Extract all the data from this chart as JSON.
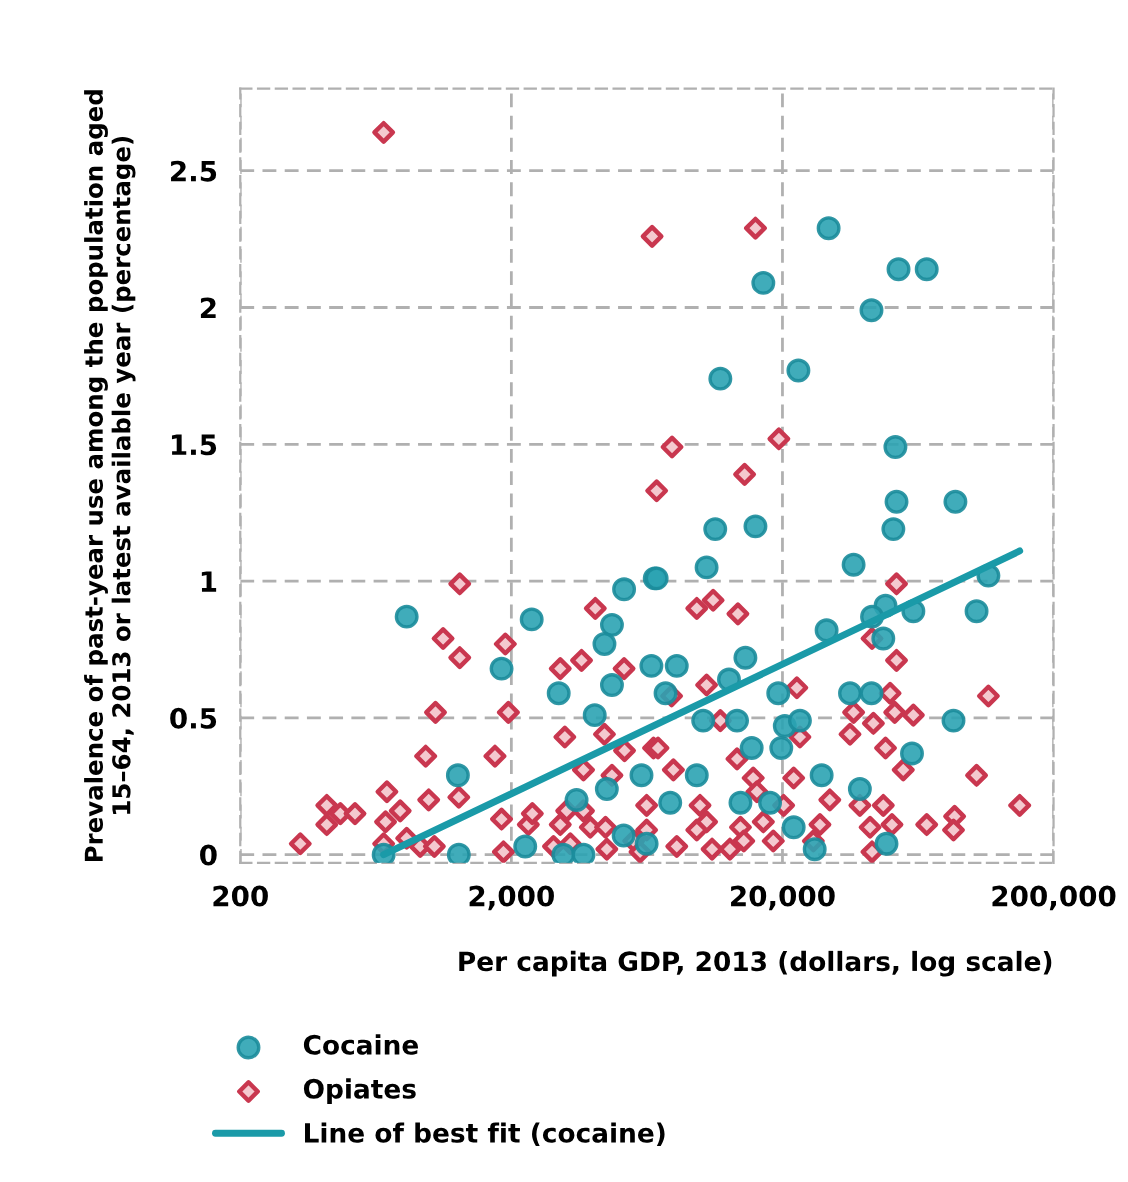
{
  "chart_data": {
    "type": "scatter",
    "xlabel": "Per capita GDP, 2013 (dollars, log scale)",
    "ylabel": "Prevalence of past-year use among the population aged\n15–64, 2013 or latest available year (percentage)",
    "log": "x",
    "xlim": [
      200,
      200000
    ],
    "ylim": [
      -0.03,
      2.8
    ],
    "xticks": [
      {
        "value": 200,
        "label": "200"
      },
      {
        "value": 2000,
        "label": "2,000"
      },
      {
        "value": 20000,
        "label": "20,000"
      },
      {
        "value": 200000,
        "label": "200,000"
      }
    ],
    "yticks": [
      0,
      0.5,
      1,
      1.5,
      2,
      2.5
    ],
    "grid": true,
    "legend": "bottom",
    "series": [
      {
        "name": "Cocaine",
        "marker": "circle",
        "color": "#2ba3b3",
        "x": [
          822,
          2377,
          1840,
          2990,
          4700,
          4410,
          5210,
          6760,
          4700,
          6570,
          4060,
          6040,
          4500,
          1270,
          3480,
          676,
          1280,
          2250,
          3110,
          3690,
          5190,
          6310,
          52700,
          86900,
          51300,
          11300,
          15900,
          10500,
          6870,
          36600,
          115000,
          104000,
          60800,
          48000,
          42800,
          47100,
          29100,
          14600,
          12700,
          8150,
          7410,
          19300,
          35500,
          42600,
          10200,
          13600,
          20400,
          23200,
          85500,
          15400,
          19800,
          60100,
          9660,
          27900,
          38600,
          7710,
          14000,
          18000,
          22000,
          48400,
          26300,
          29600,
          53600,
          68100,
          17000,
          42600,
          11800,
          22900,
          52200
        ],
        "values": [
          0.87,
          0.86,
          0.68,
          0.59,
          0.84,
          0.77,
          0.97,
          1.01,
          0.62,
          0.69,
          0.51,
          0.29,
          0.24,
          0.29,
          0.2,
          0,
          0,
          0.03,
          0,
          0,
          0.07,
          0.04,
          1.29,
          1.29,
          1.19,
          1.19,
          1.2,
          1.05,
          1.01,
          1.06,
          1.02,
          0.89,
          0.89,
          0.91,
          0.87,
          0.79,
          0.82,
          0.72,
          0.64,
          0.69,
          0.59,
          0.59,
          0.59,
          0.59,
          0.49,
          0.49,
          0.47,
          0.49,
          0.49,
          0.39,
          0.39,
          0.37,
          0.29,
          0.29,
          0.24,
          0.19,
          0.19,
          0.19,
          0.1,
          0.04,
          0.02,
          2.29,
          2.14,
          2.14,
          2.09,
          1.99,
          1.74,
          1.77,
          1.49
        ]
      },
      {
        "name": "Opiates",
        "marker": "diamond",
        "color": "#c9374f",
        "x": [
          676,
          6610,
          6870,
          15900,
          7830,
          19400,
          14500,
          1290,
          1120,
          1290,
          1900,
          1050,
          1950,
          4080,
          3030,
          3630,
          5210,
          3150,
          4410,
          5230,
          3690,
          4700,
          966,
          1740,
          695,
          991,
          1280,
          417,
          468,
          530,
          417,
          778,
          687,
          333,
          676,
          822,
          922,
          1040,
          1840,
          1870,
          2310,
          2390,
          3030,
          3200,
          3690,
          3910,
          2860,
          3300,
          4450,
          4500,
          5650,
          6310,
          5970,
          6690,
          9660,
          11100,
          13700,
          52700,
          42800,
          52700,
          7800,
          10500,
          11800,
          22600,
          36600,
          43300,
          49900,
          51900,
          60800,
          115000,
          6950,
          13600,
          23200,
          35500,
          48000,
          7920,
          55800,
          104000,
          150000,
          15600,
          16100,
          22000,
          6310,
          9930,
          10500,
          9660,
          20200,
          29900,
          38600,
          47100,
          50700,
          42100,
          68100,
          86300,
          85500,
          14000,
          17000,
          18500,
          14400,
          11000,
          12800,
          8150,
          27500,
          26000,
          42800
        ],
        "values": [
          2.64,
          2.26,
          1.33,
          2.29,
          1.49,
          1.52,
          1.39,
          0.99,
          0.79,
          0.72,
          0.77,
          0.52,
          0.52,
          0.9,
          0.68,
          0.71,
          0.68,
          0.43,
          0.44,
          0.38,
          0.31,
          0.29,
          0.36,
          0.36,
          0.23,
          0.2,
          0.21,
          0.18,
          0.15,
          0.15,
          0.11,
          0.16,
          0.12,
          0.04,
          0.04,
          0.06,
          0.03,
          0.03,
          0.13,
          0.01,
          0.11,
          0.15,
          0.11,
          0.16,
          0.16,
          0.1,
          0.03,
          0.04,
          0.1,
          0.02,
          0.05,
          0.09,
          0.01,
          0.39,
          0.9,
          0.93,
          0.88,
          0.99,
          0.79,
          0.71,
          0.58,
          0.62,
          0.49,
          0.61,
          0.52,
          0.48,
          0.59,
          0.52,
          0.51,
          0.58,
          0.39,
          0.35,
          0.43,
          0.44,
          0.39,
          0.31,
          0.31,
          0.29,
          0.18,
          0.28,
          0.23,
          0.28,
          0.18,
          0.18,
          0.12,
          0.09,
          0.18,
          0.2,
          0.18,
          0.18,
          0.11,
          0.1,
          0.11,
          0.14,
          0.09,
          0.1,
          0.12,
          0.05,
          0.05,
          0.02,
          0.02,
          0.03,
          0.11,
          0.05,
          0.01
        ]
      },
      {
        "name": "Line of best fit (cocaine)",
        "type": "line",
        "marker": "none",
        "color": "#1a9aa8",
        "x": [
          676,
          150000
        ],
        "values": [
          0,
          1.11
        ]
      }
    ]
  }
}
